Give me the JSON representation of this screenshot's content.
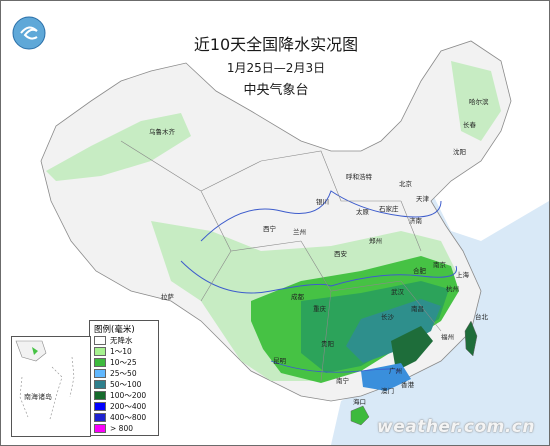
{
  "title": "近10天全国降水实况图",
  "date_range": "1月25日—2月3日",
  "issuer": "中央气象台",
  "legend": {
    "title": "图例(毫米)",
    "items": [
      {
        "label": "无降水",
        "color": "#ffffff"
      },
      {
        "label": "1～10",
        "color": "#a6f28f"
      },
      {
        "label": "10～25",
        "color": "#3dba3d"
      },
      {
        "label": "25～50",
        "color": "#61b8ff"
      },
      {
        "label": "50～100",
        "color": "#2e7f8c"
      },
      {
        "label": "100～200",
        "color": "#166b2c"
      },
      {
        "label": "200～400",
        "color": "#0000fe"
      },
      {
        "label": "400～800",
        "color": "#1e22d0"
      },
      {
        "label": "> 800",
        "color": "#fa00fa"
      }
    ]
  },
  "colors": {
    "land": "#f2f2f2",
    "sea": "#d9e9f7",
    "light_rain": "#c7ecc3",
    "rain_10_25": "#46c244",
    "rain_25_50": "#2ca35a",
    "rain_50_100": "#2e8f8c",
    "rain_100_200": "#1e6d3a",
    "heavy_blue": "#3a8fdc",
    "river": "#3d5ccc",
    "border": "#8a8a8a"
  },
  "cities": [
    "乌鲁木齐",
    "哈尔滨",
    "长春",
    "沈阳",
    "呼和浩特",
    "北京",
    "天津",
    "石家庄",
    "太原",
    "银川",
    "济南",
    "西宁",
    "兰州",
    "郑州",
    "西安",
    "拉萨",
    "成都",
    "重庆",
    "武汉",
    "合肥",
    "南京",
    "上海",
    "杭州",
    "长沙",
    "南昌",
    "福州",
    "贵阳",
    "昆明",
    "南宁",
    "广州",
    "香港",
    "澳门",
    "台北",
    "海口"
  ],
  "inset_label": "南海诸岛",
  "watermark": "weather.com.cn"
}
